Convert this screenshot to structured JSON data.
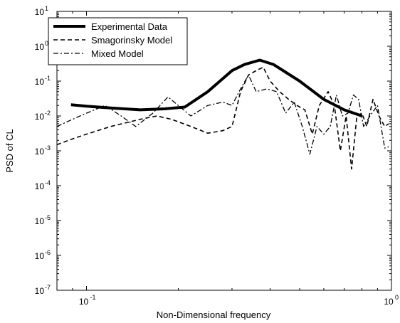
{
  "chart_data": {
    "type": "line",
    "xlabel": "Non-Dimensional frequency",
    "ylabel": "PSD of CL",
    "xscale": "log",
    "yscale": "log",
    "xlim": [
      0.08,
      1.0
    ],
    "ylim": [
      1e-07,
      10
    ],
    "x_ticks": [
      {
        "value": 0.1,
        "base": "10",
        "exp": "-1"
      },
      {
        "value": 1.0,
        "base": "10",
        "exp": "0"
      }
    ],
    "y_ticks": [
      {
        "value": 10,
        "base": "10",
        "exp": "1"
      },
      {
        "value": 1,
        "base": "10",
        "exp": "0"
      },
      {
        "value": 0.1,
        "base": "10",
        "exp": "-1"
      },
      {
        "value": 0.01,
        "base": "10",
        "exp": "-2"
      },
      {
        "value": 0.001,
        "base": "10",
        "exp": "-3"
      },
      {
        "value": 0.0001,
        "base": "10",
        "exp": "-4"
      },
      {
        "value": 1e-05,
        "base": "10",
        "exp": "-5"
      },
      {
        "value": 1e-06,
        "base": "10",
        "exp": "-6"
      },
      {
        "value": 1e-07,
        "base": "10",
        "exp": "-7"
      }
    ],
    "grid": false,
    "legend_position": "top-left",
    "series": [
      {
        "name": "Experimental Data",
        "style": "solid-thick",
        "color": "#000000",
        "points": [
          [
            0.089,
            0.021
          ],
          [
            0.1,
            0.019
          ],
          [
            0.12,
            0.017
          ],
          [
            0.15,
            0.015
          ],
          [
            0.18,
            0.016
          ],
          [
            0.21,
            0.018
          ],
          [
            0.25,
            0.05
          ],
          [
            0.3,
            0.2
          ],
          [
            0.33,
            0.3
          ],
          [
            0.37,
            0.4
          ],
          [
            0.41,
            0.3
          ],
          [
            0.5,
            0.1
          ],
          [
            0.6,
            0.03
          ],
          [
            0.7,
            0.015
          ],
          [
            0.8,
            0.01
          ]
        ]
      },
      {
        "name": "Smagorinsky Model",
        "style": "dashed",
        "color": "#000000",
        "points": [
          [
            0.08,
            0.0015
          ],
          [
            0.09,
            0.0022
          ],
          [
            0.1,
            0.003
          ],
          [
            0.12,
            0.005
          ],
          [
            0.15,
            0.008
          ],
          [
            0.17,
            0.01
          ],
          [
            0.19,
            0.008
          ],
          [
            0.22,
            0.005
          ],
          [
            0.25,
            0.0032
          ],
          [
            0.28,
            0.0038
          ],
          [
            0.3,
            0.005
          ],
          [
            0.32,
            0.05
          ],
          [
            0.34,
            0.15
          ],
          [
            0.36,
            0.2
          ],
          [
            0.38,
            0.25
          ],
          [
            0.4,
            0.1
          ],
          [
            0.43,
            0.05
          ],
          [
            0.46,
            0.03
          ],
          [
            0.49,
            0.02
          ],
          [
            0.52,
            0.015
          ],
          [
            0.55,
            0.003
          ],
          [
            0.58,
            0.02
          ],
          [
            0.62,
            0.05
          ],
          [
            0.65,
            0.02
          ],
          [
            0.68,
            0.001
          ],
          [
            0.71,
            0.01
          ],
          [
            0.74,
            0.0003
          ],
          [
            0.77,
            0.01
          ],
          [
            0.8,
            0.012
          ],
          [
            0.83,
            0.005
          ],
          [
            0.87,
            0.03
          ],
          [
            0.91,
            0.01
          ],
          [
            0.95,
            0.005
          ],
          [
            0.98,
            0.006
          ]
        ]
      },
      {
        "name": "Mixed Model",
        "style": "dash-dot",
        "color": "#000000",
        "points": [
          [
            0.08,
            0.005
          ],
          [
            0.09,
            0.008
          ],
          [
            0.1,
            0.012
          ],
          [
            0.115,
            0.02
          ],
          [
            0.13,
            0.01
          ],
          [
            0.145,
            0.005
          ],
          [
            0.165,
            0.012
          ],
          [
            0.185,
            0.035
          ],
          [
            0.2,
            0.02
          ],
          [
            0.22,
            0.01
          ],
          [
            0.25,
            0.02
          ],
          [
            0.28,
            0.025
          ],
          [
            0.3,
            0.02
          ],
          [
            0.32,
            0.06
          ],
          [
            0.34,
            0.15
          ],
          [
            0.36,
            0.05
          ],
          [
            0.39,
            0.06
          ],
          [
            0.42,
            0.05
          ],
          [
            0.45,
            0.012
          ],
          [
            0.48,
            0.025
          ],
          [
            0.51,
            0.005
          ],
          [
            0.54,
            0.0008
          ],
          [
            0.57,
            0.005
          ],
          [
            0.6,
            0.003
          ],
          [
            0.63,
            0.005
          ],
          [
            0.66,
            0.04
          ],
          [
            0.69,
            0.01
          ],
          [
            0.72,
            0.012
          ],
          [
            0.75,
            0.04
          ],
          [
            0.78,
            0.03
          ],
          [
            0.81,
            0.005
          ],
          [
            0.85,
            0.01
          ],
          [
            0.9,
            0.02
          ],
          [
            0.95,
            0.0012
          ],
          [
            0.98,
            0.0013
          ]
        ]
      }
    ]
  }
}
